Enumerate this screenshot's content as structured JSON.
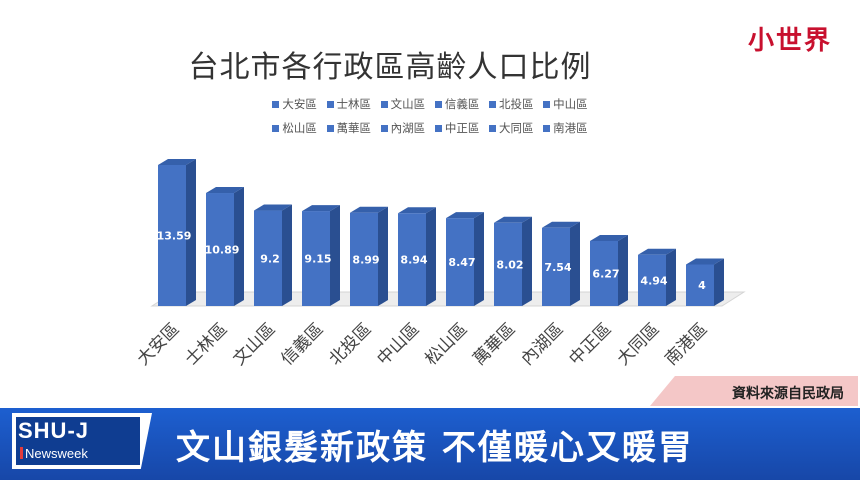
{
  "logo": "小世界",
  "chart_data": {
    "type": "bar",
    "title": "台北市各行政區高齡人口比例",
    "categories": [
      "大安區",
      "士林區",
      "文山區",
      "信義區",
      "北投區",
      "中山區",
      "松山區",
      "萬華區",
      "內湖區",
      "中正區",
      "大同區",
      "南港區"
    ],
    "values": [
      13.59,
      10.89,
      9.2,
      9.15,
      8.99,
      8.94,
      8.47,
      8.02,
      7.54,
      6.27,
      4.94,
      4
    ],
    "value_labels": [
      "13.59",
      "10.89",
      "9.2",
      "9.15",
      "8.99",
      "8.94",
      "8.47",
      "8.02",
      "7.54",
      "6.27",
      "4.94",
      "4"
    ],
    "legend": [
      "大安區",
      "士林區",
      "文山區",
      "信義區",
      "北投區",
      "中山區",
      "松山區",
      "萬華區",
      "內湖區",
      "中正區",
      "大同區",
      "南港區"
    ],
    "legend_placement": "top",
    "bar_color": "#4472c4",
    "grid": false,
    "ylim": [
      0,
      15
    ]
  },
  "source_label": "資料來源自民政局",
  "news_bar": {
    "brand_name": "SHU-J",
    "brand_sub": "Newsweek",
    "headline": "文山銀髮新政策 不僅暖心又暖胃"
  }
}
